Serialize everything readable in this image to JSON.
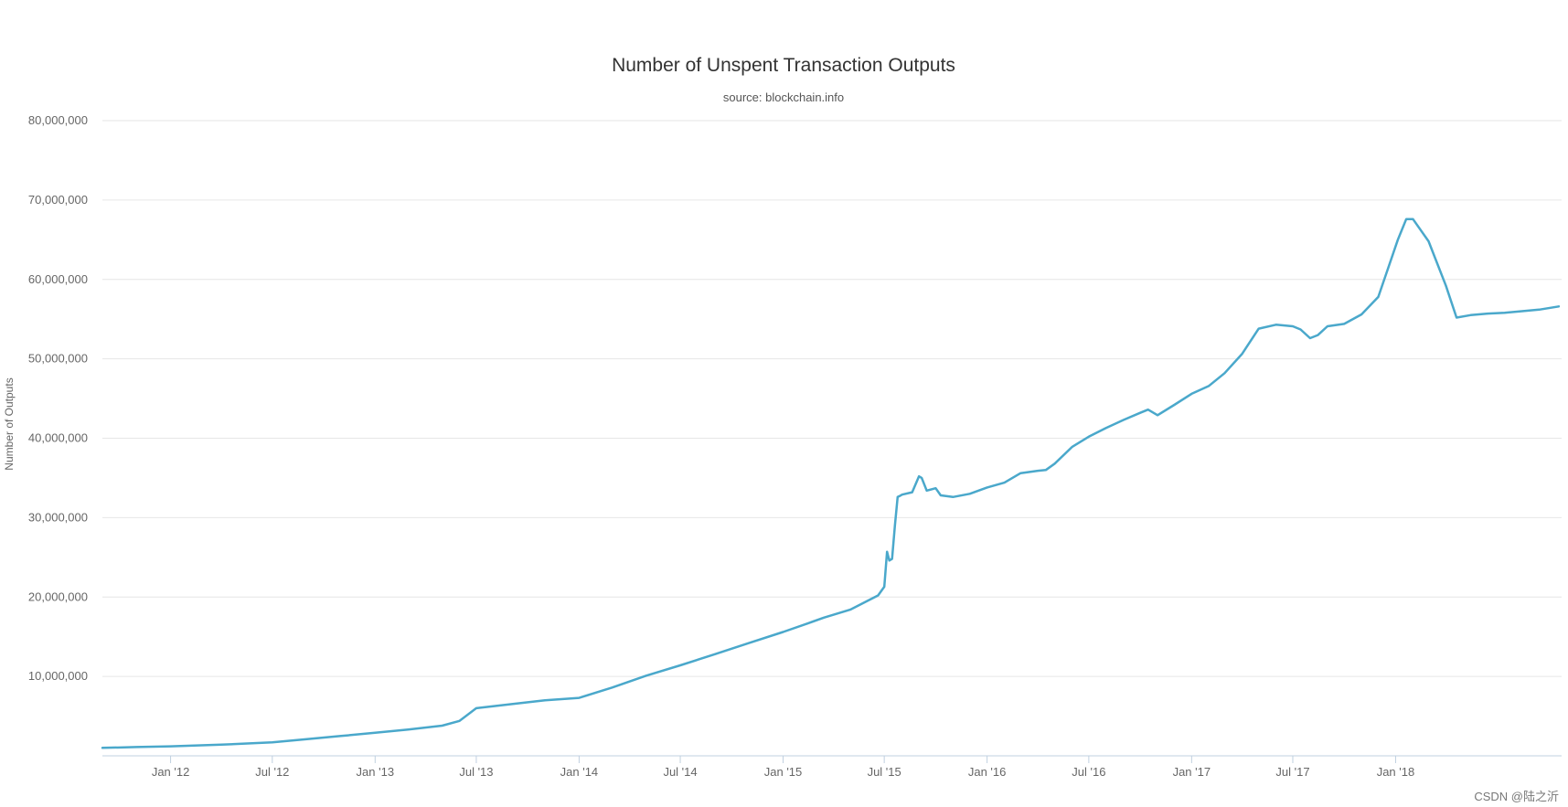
{
  "chart_data": {
    "type": "line",
    "title": "Number of Unspent Transaction Outputs",
    "subtitle": "source: blockchain.info",
    "xlabel": "",
    "ylabel": "Number of Outputs",
    "ylim": [
      0,
      80000000
    ],
    "xlim": [
      "2011-09-01",
      "2018-10-25"
    ],
    "grid": true,
    "legend": "none",
    "y_ticks": [
      {
        "value": 10000000,
        "label": "10,000,000"
      },
      {
        "value": 20000000,
        "label": "20,000,000"
      },
      {
        "value": 30000000,
        "label": "30,000,000"
      },
      {
        "value": 40000000,
        "label": "40,000,000"
      },
      {
        "value": 50000000,
        "label": "50,000,000"
      },
      {
        "value": 60000000,
        "label": "60,000,000"
      },
      {
        "value": 70000000,
        "label": "70,000,000"
      },
      {
        "value": 80000000,
        "label": "80,000,000"
      }
    ],
    "x_ticks": [
      {
        "date": "2012-01-01",
        "label": "Jan '12"
      },
      {
        "date": "2012-07-01",
        "label": "Jul '12"
      },
      {
        "date": "2013-01-01",
        "label": "Jan '13"
      },
      {
        "date": "2013-07-01",
        "label": "Jul '13"
      },
      {
        "date": "2014-01-01",
        "label": "Jan '14"
      },
      {
        "date": "2014-07-01",
        "label": "Jul '14"
      },
      {
        "date": "2015-01-01",
        "label": "Jan '15"
      },
      {
        "date": "2015-07-01",
        "label": "Jul '15"
      },
      {
        "date": "2016-01-01",
        "label": "Jan '16"
      },
      {
        "date": "2016-07-01",
        "label": "Jul '16"
      },
      {
        "date": "2017-01-01",
        "label": "Jan '17"
      },
      {
        "date": "2017-07-01",
        "label": "Jul '17"
      },
      {
        "date": "2018-01-01",
        "label": "Jan '18"
      }
    ],
    "series": [
      {
        "color": "#4aa8cb",
        "x": [
          "2011-09-01",
          "2011-11-01",
          "2012-01-01",
          "2012-04-01",
          "2012-07-01",
          "2012-09-01",
          "2012-11-01",
          "2013-01-01",
          "2013-03-01",
          "2013-05-01",
          "2013-06-01",
          "2013-07-01",
          "2013-09-01",
          "2013-11-01",
          "2014-01-01",
          "2014-03-01",
          "2014-05-01",
          "2014-07-01",
          "2014-09-01",
          "2014-11-01",
          "2015-01-01",
          "2015-02-15",
          "2015-03-15",
          "2015-05-01",
          "2015-06-20",
          "2015-07-01",
          "2015-07-06",
          "2015-07-10",
          "2015-07-15",
          "2015-07-20",
          "2015-07-25",
          "2015-07-28",
          "2015-08-02",
          "2015-08-20",
          "2015-09-01",
          "2015-09-06",
          "2015-09-15",
          "2015-10-01",
          "2015-10-10",
          "2015-11-01",
          "2015-12-01",
          "2016-01-01",
          "2016-02-01",
          "2016-03-01",
          "2016-04-01",
          "2016-04-15",
          "2016-05-01",
          "2016-06-01",
          "2016-07-01",
          "2016-08-01",
          "2016-09-01",
          "2016-10-01",
          "2016-10-15",
          "2016-11-01",
          "2016-12-01",
          "2017-01-01",
          "2017-02-01",
          "2017-03-01",
          "2017-04-01",
          "2017-05-01",
          "2017-06-01",
          "2017-07-01",
          "2017-07-15",
          "2017-08-01",
          "2017-08-15",
          "2017-09-01",
          "2017-10-01",
          "2017-11-01",
          "2017-12-01",
          "2017-12-20",
          "2018-01-05",
          "2018-01-20",
          "2018-02-01",
          "2018-03-01",
          "2018-04-01",
          "2018-04-20",
          "2018-05-15",
          "2018-06-15",
          "2018-07-15",
          "2018-08-15",
          "2018-09-15",
          "2018-10-20"
        ],
        "values": [
          1000000,
          1100000,
          1200000,
          1400000,
          1700000,
          2100000,
          2500000,
          2900000,
          3300000,
          3800000,
          4400000,
          6000000,
          6500000,
          7000000,
          7300000,
          8600000,
          10100000,
          11400000,
          12800000,
          14200000,
          15600000,
          16700000,
          17400000,
          18400000,
          20200000,
          21300000,
          25700000,
          24600000,
          24800000,
          29000000,
          32600000,
          32700000,
          32900000,
          33200000,
          35200000,
          35000000,
          33400000,
          33700000,
          32800000,
          32600000,
          33000000,
          33800000,
          34400000,
          35600000,
          35900000,
          36000000,
          36800000,
          38900000,
          40200000,
          41300000,
          42300000,
          43200000,
          43600000,
          42900000,
          44200000,
          45600000,
          46600000,
          48200000,
          50600000,
          53800000,
          54300000,
          54100000,
          53700000,
          52600000,
          53000000,
          54100000,
          54400000,
          55600000,
          57800000,
          61700000,
          65000000,
          67600000,
          67600000,
          64800000,
          59200000,
          55200000,
          55500000,
          55700000,
          55800000,
          56000000,
          56200000,
          56600000
        ]
      }
    ]
  },
  "watermark": "CSDN @陆之沂"
}
